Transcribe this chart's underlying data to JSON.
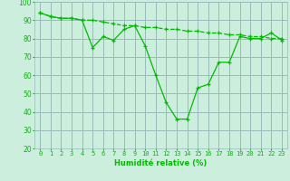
{
  "line1_x": [
    0,
    1,
    2,
    3,
    4,
    5,
    6,
    7,
    8,
    9,
    10,
    11,
    12,
    13,
    14,
    15,
    16,
    17,
    18,
    19,
    20,
    21,
    22,
    23
  ],
  "line1_y": [
    94,
    92,
    91,
    91,
    90,
    75,
    81,
    79,
    85,
    87,
    76,
    60,
    45,
    36,
    36,
    53,
    55,
    67,
    67,
    81,
    80,
    80,
    83,
    79
  ],
  "line2_x": [
    0,
    1,
    2,
    3,
    4,
    5,
    6,
    7,
    8,
    9,
    10,
    11,
    12,
    13,
    14,
    15,
    16,
    17,
    18,
    19,
    20,
    21,
    22,
    23
  ],
  "line2_y": [
    94,
    92,
    91,
    91,
    90,
    90,
    89,
    88,
    87,
    87,
    86,
    86,
    85,
    85,
    84,
    84,
    83,
    83,
    82,
    82,
    81,
    81,
    80,
    80
  ],
  "line_color": "#00bb00",
  "bg_color": "#cceedd",
  "grid_color": "#99bbbb",
  "xlabel": "Humidité relative (%)",
  "ylim": [
    20,
    100
  ],
  "xlim": [
    -0.5,
    23.5
  ],
  "yticks": [
    20,
    30,
    40,
    50,
    60,
    70,
    80,
    90,
    100
  ],
  "xticks": [
    0,
    1,
    2,
    3,
    4,
    5,
    6,
    7,
    8,
    9,
    10,
    11,
    12,
    13,
    14,
    15,
    16,
    17,
    18,
    19,
    20,
    21,
    22,
    23
  ]
}
